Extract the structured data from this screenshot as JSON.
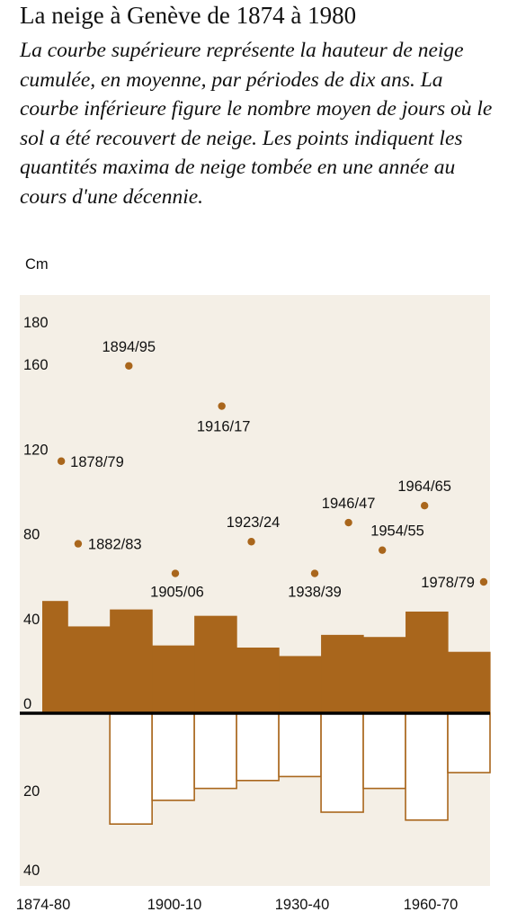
{
  "title": "La neige à Genève de 1874 à 1980",
  "subtitle": "La courbe supérieure représente la hauteur de neige cumulée, en moyenne, par périodes de dix ans. La courbe inférieure figure le nombre moyen de jours où le sol a été recouvert de neige. Les points indiquent les quantités maxima de neige tombée en une année au cours d'une décennie.",
  "colors": {
    "background": "#f4efe6",
    "bar": "#a9661c",
    "marker": "#a9661c",
    "axis": "#000000"
  },
  "chart_data": {
    "type": "bar",
    "y_unit_label": "Cm",
    "ylim_upper": [
      0,
      180
    ],
    "ylim_lower": [
      0,
      40
    ],
    "upper_ticks": [
      "180",
      "160",
      "120",
      "80",
      "40",
      "0"
    ],
    "lower_ticks": [
      "20",
      "40"
    ],
    "x_tick_labels": [
      "1874-80",
      "1900-10",
      "1930-40",
      "1960-70"
    ],
    "decades": [
      "1874-80",
      "1880-90",
      "1890-1900",
      "1900-10",
      "1910-20",
      "1920-30",
      "1930-40",
      "1940-50",
      "1950-60",
      "1960-70",
      "1970-80"
    ],
    "series": [
      {
        "values": [
          53,
          41,
          49,
          32,
          46,
          31,
          27,
          37,
          36,
          48,
          29
        ]
      },
      {
        "values": [
          0,
          0,
          28,
          22,
          19,
          17,
          16,
          25,
          19,
          27,
          15
        ]
      }
    ],
    "points": [
      {
        "label": "1878/79",
        "x": 1878.5,
        "y": 119
      },
      {
        "label": "1882/83",
        "x": 1882.5,
        "y": 80
      },
      {
        "label": "1894/95",
        "x": 1894.5,
        "y": 164
      },
      {
        "label": "1905/06",
        "x": 1905.5,
        "y": 66
      },
      {
        "label": "1916/17",
        "x": 1916.5,
        "y": 145
      },
      {
        "label": "1923/24",
        "x": 1923.5,
        "y": 81
      },
      {
        "label": "1938/39",
        "x": 1938.5,
        "y": 66
      },
      {
        "label": "1946/47",
        "x": 1946.5,
        "y": 90
      },
      {
        "label": "1954/55",
        "x": 1954.5,
        "y": 77
      },
      {
        "label": "1964/65",
        "x": 1964.5,
        "y": 98
      },
      {
        "label": "1978/79",
        "x": 1978.5,
        "y": 62
      }
    ]
  }
}
